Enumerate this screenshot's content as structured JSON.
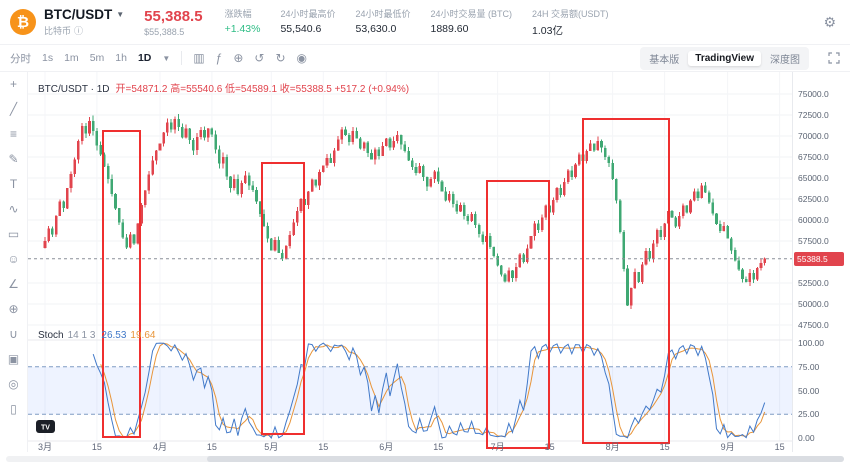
{
  "header": {
    "symbol": "BTC/USDT",
    "name": "比特币",
    "price": "55,388.5",
    "price_usd": "$55,388.5",
    "stats": [
      {
        "key": "change",
        "label": "涨跌幅",
        "value": "+1.43%",
        "positive": true
      },
      {
        "key": "high",
        "label": "24小时最高价",
        "value": "55,540.6"
      },
      {
        "key": "low",
        "label": "24小时最低价",
        "value": "53,630.0"
      },
      {
        "key": "volume",
        "label": "24小时交易量 (BTC)",
        "value": "1889.60"
      },
      {
        "key": "turnover",
        "label": "24H 交易额(USDT)",
        "value": "1.03亿"
      }
    ]
  },
  "toolbar": {
    "intervals": [
      "分时",
      "1s",
      "1m",
      "5m",
      "1h",
      "1D"
    ],
    "active_interval": "1D",
    "icons": [
      {
        "name": "candle-style-icon",
        "glyph": "▥"
      },
      {
        "name": "indicators-icon",
        "glyph": "ƒ"
      },
      {
        "name": "compare-icon",
        "glyph": "⊕"
      },
      {
        "name": "undo-icon",
        "glyph": "↺"
      },
      {
        "name": "redo-icon",
        "glyph": "↻"
      },
      {
        "name": "camera-icon",
        "glyph": "◉"
      }
    ],
    "right_tabs": [
      "基本版",
      "TradingView",
      "深度图"
    ],
    "active_tab": "TradingView"
  },
  "left_tools": [
    {
      "name": "crosshair-icon",
      "glyph": "+"
    },
    {
      "name": "trend-line-icon",
      "glyph": "╱"
    },
    {
      "name": "fib-retracement-icon",
      "glyph": "≡"
    },
    {
      "name": "brush-icon",
      "glyph": "✎"
    },
    {
      "name": "text-tool-icon",
      "glyph": "T"
    },
    {
      "name": "pattern-tool-icon",
      "glyph": "∿"
    },
    {
      "name": "position-tool-icon",
      "glyph": "▭"
    },
    {
      "name": "emoji-tool-icon",
      "glyph": "☺"
    },
    {
      "name": "measure-icon",
      "glyph": "∠"
    },
    {
      "name": "zoom-icon",
      "glyph": "⊕"
    },
    {
      "name": "magnet-icon",
      "glyph": "∪"
    },
    {
      "name": "lock-icon",
      "glyph": "▣"
    },
    {
      "name": "eye-icon",
      "glyph": "◎"
    },
    {
      "name": "trash-icon",
      "glyph": "▯"
    }
  ],
  "chart": {
    "legend_title": "BTC/USDT · 1D",
    "legend_ohlc": "开=54871.2  高=55540.6  低=54589.1  收=55388.5  +517.2 (+0.94%)",
    "price_axis_values": [
      75000,
      72500,
      70000,
      67500,
      65000,
      62500,
      60000,
      57500,
      52500,
      50000,
      47500
    ],
    "last_price_tag": "55388.5"
  },
  "stoch": {
    "name": "Stoch",
    "params": "14 1 3",
    "k_value": "26.53",
    "d_value": "19.64",
    "axis_values": [
      100,
      75,
      50,
      25,
      0
    ]
  },
  "x_axis": [
    {
      "label": "3月",
      "day": 0
    },
    {
      "label": "15",
      "day": 14
    },
    {
      "label": "4月",
      "day": 31
    },
    {
      "label": "15",
      "day": 45
    },
    {
      "label": "5月",
      "day": 61
    },
    {
      "label": "15",
      "day": 75
    },
    {
      "label": "6月",
      "day": 92
    },
    {
      "label": "15",
      "day": 106
    },
    {
      "label": "7月",
      "day": 122
    },
    {
      "label": "15",
      "day": 136
    },
    {
      "label": "8月",
      "day": 153
    },
    {
      "label": "15",
      "day": 167
    },
    {
      "label": "9月",
      "day": 184
    },
    {
      "label": "15",
      "day": 198
    }
  ],
  "chart_data": {
    "type": "candlestick",
    "title": "BTC/USDT daily candles (Mar-Sep) with Stochastic 14 1 3 sub-panel",
    "price_range": [
      47500,
      75000
    ],
    "stoch_range": [
      0,
      100
    ],
    "current_price": 55388.5,
    "last_candle": {
      "open": 54871.2,
      "high": 55540.6,
      "low": 54589.1,
      "close": 55388.5
    },
    "closes": [
      57500,
      59000,
      58300,
      60500,
      62200,
      61400,
      63800,
      65500,
      67200,
      69400,
      71200,
      70300,
      71800,
      70600,
      68900,
      67800,
      66400,
      64900,
      63100,
      61400,
      59700,
      57900,
      56700,
      58300,
      57200,
      59600,
      61800,
      63500,
      65400,
      67100,
      68300,
      69100,
      70400,
      71600,
      70800,
      72000,
      71100,
      69800,
      70900,
      69500,
      68300,
      69900,
      70700,
      69800,
      70900,
      70200,
      68400,
      66700,
      67500,
      65200,
      63800,
      64900,
      63100,
      64400,
      65300,
      64100,
      63600,
      62200,
      60700,
      59300,
      57800,
      56400,
      57600,
      56100,
      55400,
      56900,
      58200,
      59700,
      61100,
      62500,
      61800,
      63400,
      64800,
      64100,
      65700,
      66500,
      67400,
      66800,
      68300,
      69600,
      70800,
      70100,
      69300,
      70600,
      69700,
      68500,
      69200,
      68000,
      67200,
      68400,
      67600,
      68800,
      69700,
      68600,
      69400,
      70100,
      69000,
      68200,
      67100,
      66300,
      65600,
      66400,
      65100,
      64000,
      64900,
      65800,
      64600,
      63400,
      62300,
      63100,
      61900,
      61000,
      61800,
      60500,
      59900,
      60700,
      59400,
      58300,
      57400,
      58100,
      56800,
      55700,
      54600,
      53500,
      52700,
      54000,
      53100,
      54400,
      55900,
      55000,
      56600,
      58100,
      59600,
      58800,
      60300,
      61700,
      60900,
      62400,
      63800,
      63000,
      64500,
      65900,
      65100,
      66600,
      67800,
      67000,
      68200,
      69100,
      68300,
      69400,
      68600,
      67500,
      66800,
      64900,
      62300,
      58600,
      54200,
      49800,
      51900,
      53800,
      52600,
      54700,
      56300,
      55400,
      57200,
      58800,
      58000,
      59600,
      61100,
      60300,
      59200,
      60500,
      61700,
      60900,
      62300,
      63400,
      62600,
      64100,
      63300,
      62100,
      60800,
      59500,
      58700,
      59300,
      57800,
      56400,
      55200,
      54100,
      53000,
      52600,
      53700,
      52900,
      54300,
      54871,
      55388.5
    ],
    "red_boxes": [
      [
        75,
        59,
        37,
        306
      ],
      [
        234,
        91,
        42,
        271
      ],
      [
        459,
        109,
        62,
        267
      ],
      [
        555,
        47,
        86,
        324
      ]
    ]
  },
  "colors": {
    "up_red": "#e1444d",
    "down_green": "#3fa873",
    "annotation_red": "#ef2f2f",
    "k_blue": "#4179c9",
    "d_orange": "#e8953a",
    "positive_green": "#2ebd85",
    "brand_orange": "#f7931a",
    "band_blue": "rgba(41,98,255,0.08)",
    "band_edge": "#7f9bc4",
    "price_line": "#8a8f98"
  }
}
